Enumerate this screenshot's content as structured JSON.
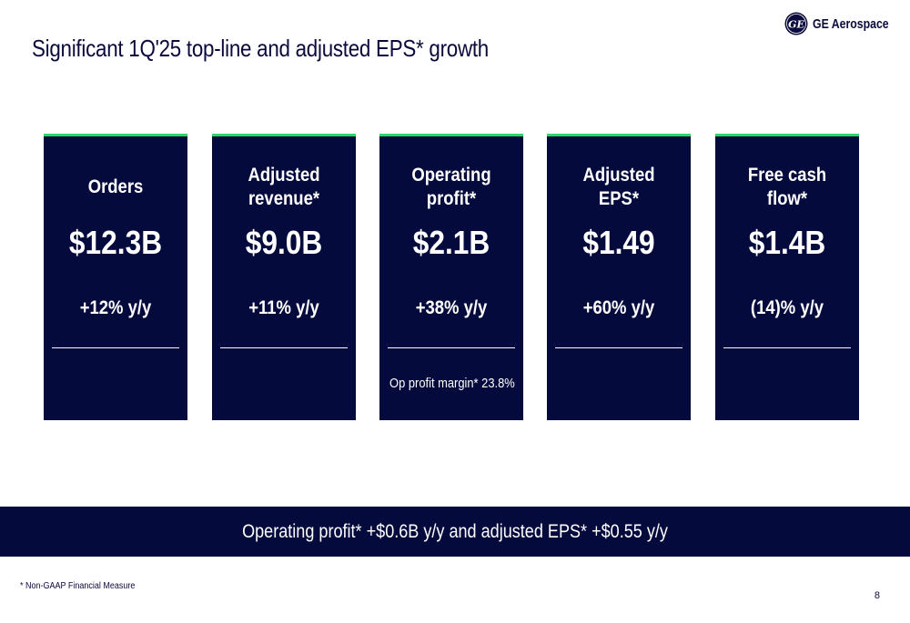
{
  "slide": {
    "title": "Significant 1Q'25 top-line and adjusted EPS* growth",
    "brand": "GE Aerospace",
    "cards": [
      {
        "label": "Orders",
        "value": "$12.3B",
        "change": "+12% y/y",
        "note": ""
      },
      {
        "label": "Adjusted\nrevenue*",
        "value": "$9.0B",
        "change": "+11% y/y",
        "note": ""
      },
      {
        "label": "Operating\nprofit*",
        "value": "$2.1B",
        "change": "+38% y/y",
        "note": "Op profit margin* 23.8%"
      },
      {
        "label": "Adjusted\nEPS*",
        "value": "$1.49",
        "change": "+60% y/y",
        "note": ""
      },
      {
        "label": "Free cash\nflow*",
        "value": "$1.4B",
        "change": "(14)% y/y",
        "note": ""
      }
    ],
    "banner": "Operating profit* +$0.6B y/y and adjusted EPS* +$0.55 y/y",
    "footnote": "* Non-GAAP Financial Measure",
    "page_number": "8"
  },
  "colors": {
    "navy": "#050a3d",
    "accent_green": "#2fd36b",
    "text": "#0a0a3c"
  }
}
